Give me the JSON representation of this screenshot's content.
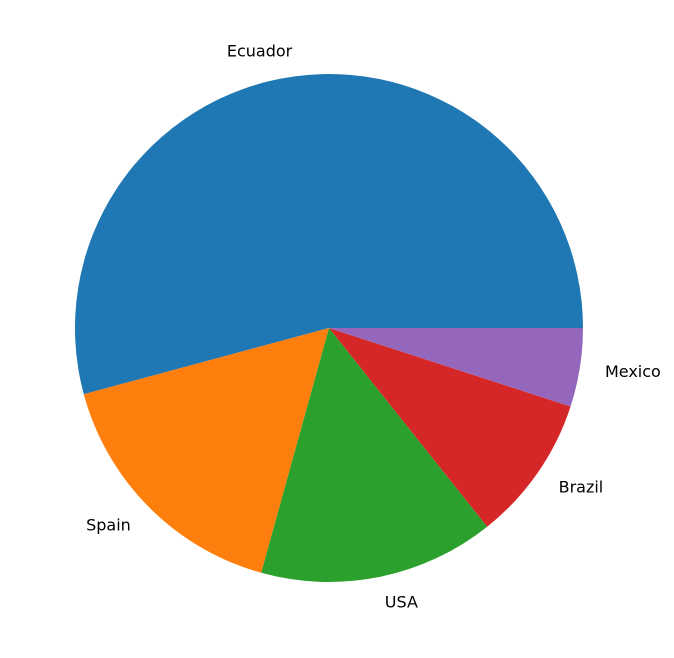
{
  "chart_data": {
    "type": "pie",
    "title": "",
    "categories": [
      "Ecuador",
      "Spain",
      "USA",
      "Brazil",
      "Mexico"
    ],
    "values": [
      54.2,
      16.5,
      15.0,
      9.3,
      5.0
    ],
    "colors": [
      "#1f77b4",
      "#ff7f0e",
      "#2ca02c",
      "#d62728",
      "#9467bd"
    ],
    "start_angle_deg": 0,
    "direction": "counterclockwise",
    "legend": "none"
  }
}
